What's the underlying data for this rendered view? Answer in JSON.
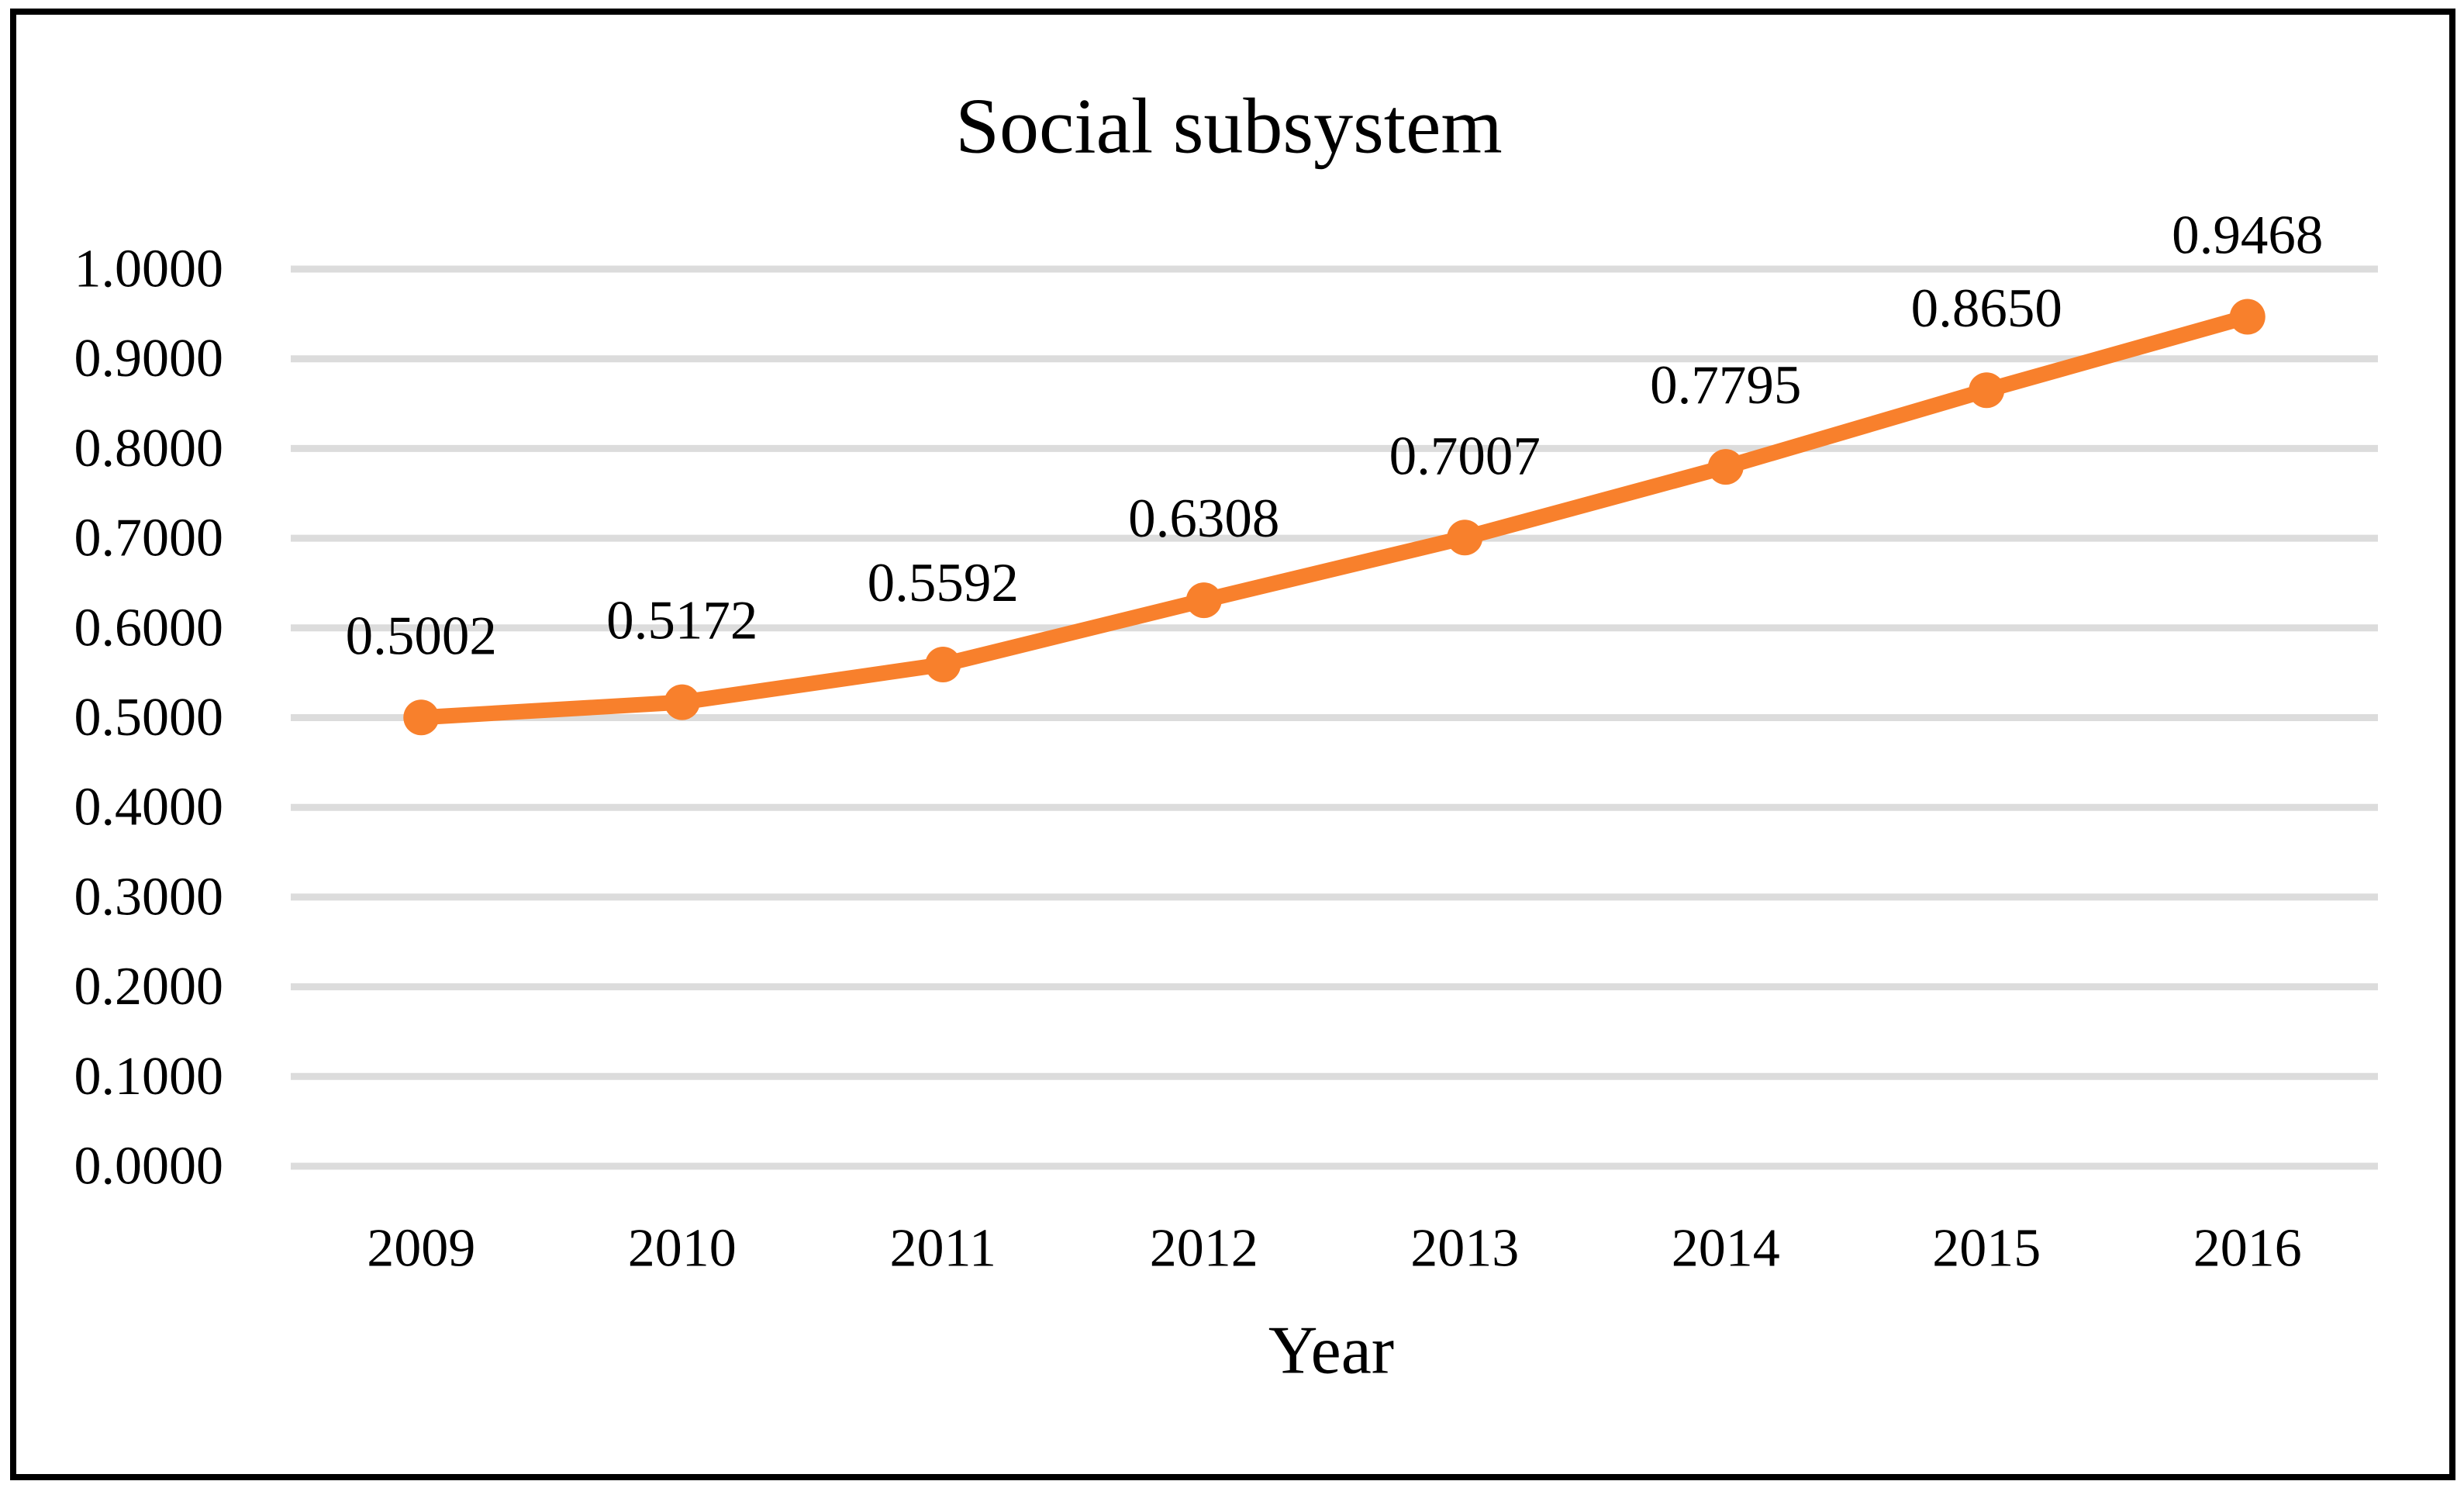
{
  "chart_data": {
    "type": "line",
    "title": "Social subsystem",
    "xlabel": "Year",
    "ylabel": "",
    "categories": [
      "2009",
      "2010",
      "2011",
      "2012",
      "2013",
      "2014",
      "2015",
      "2016"
    ],
    "series": [
      {
        "values": [
          0.5002,
          0.5172,
          0.5592,
          0.6308,
          0.7007,
          0.7795,
          0.865,
          0.9468
        ],
        "color": "#F8802C",
        "marker": "circle"
      }
    ],
    "data_labels": [
      "0.5002",
      "0.5172",
      "0.5592",
      "0.6308",
      "0.7007",
      "0.7795",
      "0.8650",
      "0.9468"
    ],
    "ylim": [
      0,
      1
    ],
    "ytick_step": 0.1,
    "ytick_decimals": 4,
    "grid": "horizontal",
    "gridline_color": "#DCDCDC",
    "legend": "none",
    "text_color": "#000000",
    "border_color": "#000000"
  }
}
